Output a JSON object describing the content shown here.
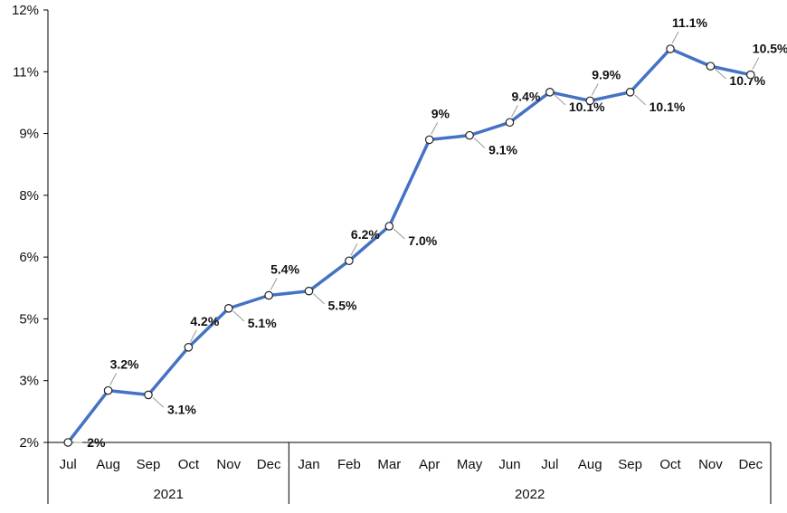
{
  "chart_data": {
    "type": "line",
    "title": "",
    "xlabel": "",
    "ylabel": "",
    "categories": [
      "Jul",
      "Aug",
      "Sep",
      "Oct",
      "Nov",
      "Dec",
      "Jan",
      "Feb",
      "Mar",
      "Apr",
      "May",
      "Jun",
      "Jul",
      "Aug",
      "Sep",
      "Oct",
      "Nov",
      "Dec"
    ],
    "groups": [
      {
        "label": "2021",
        "span": 6
      },
      {
        "label": "2022",
        "span": 12
      }
    ],
    "yticks": [
      "2%",
      "3%",
      "5%",
      "6%",
      "8%",
      "9%",
      "11%",
      "12%"
    ],
    "ylim": [
      2,
      12
    ],
    "series": [
      {
        "values": [
          2.0,
          3.2,
          3.1,
          4.2,
          5.1,
          5.4,
          5.5,
          6.2,
          7.0,
          9.0,
          9.1,
          9.4,
          10.1,
          9.9,
          10.1,
          11.1,
          10.7,
          10.5
        ],
        "labels": [
          "2%",
          "3.2%",
          "3.1%",
          "4.2%",
          "5.1%",
          "5.4%",
          "5.5%",
          "6.2%",
          "7.0%",
          "9%",
          "9.1%",
          "9.4%",
          "10.1%",
          "9.9%",
          "10.1%",
          "11.1%",
          "10.7%",
          "10.5%"
        ],
        "label_position": [
          "right",
          "above",
          "below",
          "above",
          "below",
          "above",
          "below",
          "above",
          "below",
          "above",
          "below",
          "above",
          "below",
          "above",
          "below",
          "above",
          "below",
          "above"
        ]
      }
    ],
    "line_color": "#4472C4",
    "grid": false,
    "legend": "none"
  }
}
